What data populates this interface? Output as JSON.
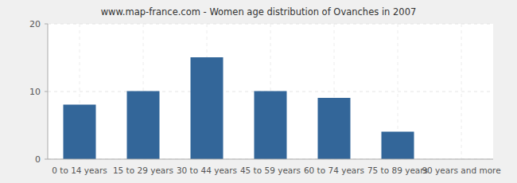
{
  "chart_data": {
    "type": "bar",
    "title": "www.map-france.com - Women age distribution of Ovanches in 2007",
    "categories": [
      "0 to 14 years",
      "15 to 29 years",
      "30 to 44 years",
      "45 to 59 years",
      "60 to 74 years",
      "75 to 89 years",
      "90 years and more"
    ],
    "values": [
      8,
      10,
      15,
      10,
      9,
      4,
      0
    ],
    "color": "#336699",
    "ylim": [
      0,
      20
    ],
    "yticks": [
      0,
      10,
      20
    ],
    "grid": true
  }
}
